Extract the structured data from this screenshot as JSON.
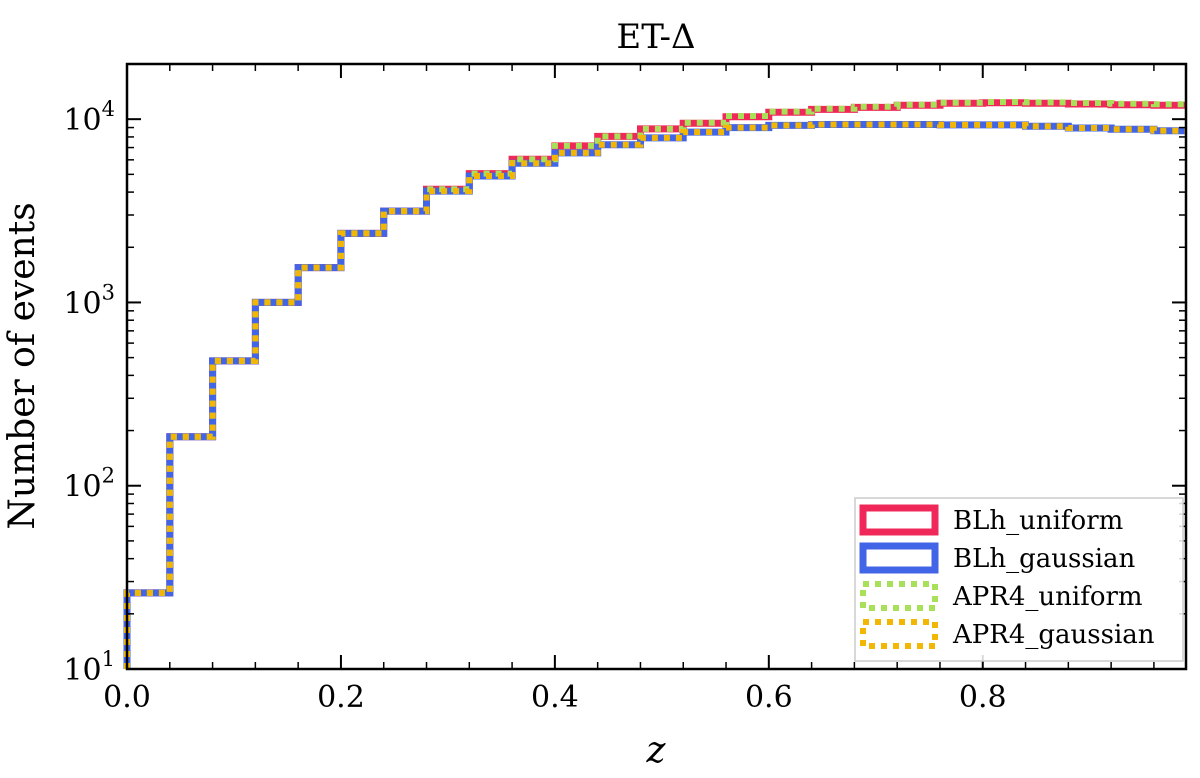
{
  "chart_data": {
    "type": "histogram-step",
    "title": "ET-Δ",
    "xlabel": "z",
    "ylabel": "Number of events",
    "xlim": [
      0.0,
      0.99
    ],
    "ylim": [
      10,
      20000
    ],
    "yscale": "log",
    "x_ticks": [
      "0.0",
      "0.2",
      "0.4",
      "0.6",
      "0.8"
    ],
    "x_tick_values": [
      0.0,
      0.2,
      0.4,
      0.6,
      0.8
    ],
    "y_ticks": [
      {
        "value": 10,
        "base": "10",
        "exp": "1"
      },
      {
        "value": 100,
        "base": "10",
        "exp": "2"
      },
      {
        "value": 1000,
        "base": "10",
        "exp": "3"
      },
      {
        "value": 10000,
        "base": "10",
        "exp": "4"
      }
    ],
    "legend_position": "lower-right",
    "bin_edges": [
      0.0,
      0.04,
      0.08,
      0.12,
      0.16,
      0.2,
      0.24,
      0.28,
      0.32,
      0.36,
      0.4,
      0.44,
      0.48,
      0.52,
      0.56,
      0.6,
      0.64,
      0.68,
      0.72,
      0.76,
      0.8,
      0.84,
      0.88,
      0.92,
      0.96,
      0.99
    ],
    "series": [
      {
        "name": "BLh_uniform",
        "color": "#f0285a",
        "style": "solid",
        "values": [
          26,
          185,
          480,
          1000,
          1550,
          2380,
          3150,
          4150,
          5050,
          6050,
          7150,
          8050,
          8850,
          9500,
          10300,
          10900,
          11300,
          11600,
          11900,
          12200,
          12300,
          12200,
          12100,
          12000,
          11900
        ]
      },
      {
        "name": "BLh_gaussian",
        "color": "#4264e6",
        "style": "solid",
        "values": [
          26,
          185,
          480,
          1000,
          1550,
          2380,
          3150,
          4050,
          4900,
          5750,
          6550,
          7250,
          7900,
          8500,
          9000,
          9250,
          9350,
          9350,
          9350,
          9300,
          9300,
          9150,
          8950,
          8800,
          8650
        ]
      },
      {
        "name": "APR4_uniform",
        "color": "#a8e05a",
        "style": "dotted",
        "values": [
          26,
          185,
          480,
          1000,
          1550,
          2380,
          3150,
          4150,
          5050,
          6050,
          7150,
          8050,
          8850,
          9550,
          10400,
          11000,
          11400,
          11700,
          12000,
          12300,
          12400,
          12350,
          12250,
          12150,
          12050
        ]
      },
      {
        "name": "APR4_gaussian",
        "color": "#f2b705",
        "style": "dotted",
        "values": [
          26,
          185,
          480,
          1000,
          1550,
          2380,
          3150,
          4050,
          4900,
          5750,
          6550,
          7250,
          7900,
          8500,
          9000,
          9250,
          9350,
          9350,
          9350,
          9300,
          9300,
          9150,
          8950,
          8800,
          8650
        ]
      }
    ]
  }
}
